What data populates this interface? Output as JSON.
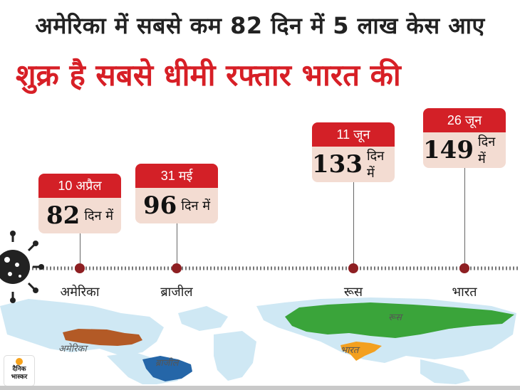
{
  "headline": "अमेरिका में सबसे कम 82 दिन में 5 लाख केस आए",
  "subheadline": "शुक्र है सबसे धीमी रफ्तार भारत की",
  "unit_label": "दिन में",
  "colors": {
    "accent": "#d32027",
    "card_body": "#f3dcd2",
    "dot": "#8e1f22"
  },
  "milestones": [
    {
      "date": "10 अप्रैल",
      "days": "82",
      "country": "अमेरिका"
    },
    {
      "date": "31 मई",
      "days": "96",
      "country": "ब्राजील"
    },
    {
      "date": "11 जून",
      "days": "133",
      "country": "रूस"
    },
    {
      "date": "26 जून",
      "days": "149",
      "country": "भारत"
    }
  ],
  "map_labels": {
    "usa": "अमेरिका",
    "brazil": "ब्राजील",
    "russia": "रूस",
    "india": "भारत"
  },
  "logo": {
    "line1": "दैनिक",
    "line2": "भास्कर"
  },
  "icons": {
    "virus": "coronavirus-icon"
  }
}
